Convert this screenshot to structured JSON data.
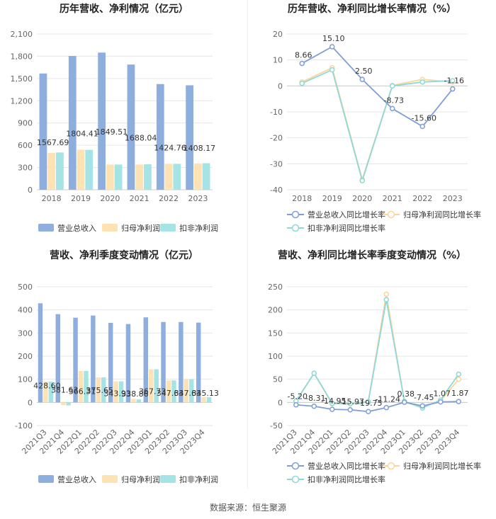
{
  "source_note": "数据来源：恒生聚源",
  "colors": {
    "revenue": "#8eaedd",
    "net_profit": "#fde2b4",
    "deducted_profit": "#a6e3e4",
    "revenue_line": "#7f9fd4",
    "net_profit_line": "#f9d79b",
    "deducted_line": "#8fd8d8",
    "grid": "#e6e6e6",
    "axis_text": "#666666",
    "title": "#222222"
  },
  "chart_data": [
    {
      "id": "annual_amount",
      "type": "bar",
      "title": "历年营收、净利情况（亿元）",
      "categories": [
        "2018",
        "2019",
        "2020",
        "2021",
        "2022",
        "2023"
      ],
      "ylim": [
        0,
        2100
      ],
      "yticks": [
        0,
        300,
        600,
        900,
        1200,
        1500,
        1800,
        2100
      ],
      "ytick_labels": [
        "0",
        "300",
        "600",
        "900",
        "1,200",
        "1,500",
        "1,800",
        "2,100"
      ],
      "series": [
        {
          "name": "营业总收入",
          "values": [
            1567.69,
            1804.41,
            1849.51,
            1688.04,
            1424.76,
            1408.17
          ],
          "labels": [
            "1567.69",
            "1804.41",
            "1849.51",
            "1688.04",
            "1424.76",
            "1408.17"
          ]
        },
        {
          "name": "归母净利润",
          "values": [
            497,
            540,
            340,
            340,
            350,
            355
          ]
        },
        {
          "name": "扣非净利润",
          "values": [
            503,
            538,
            340,
            343,
            350,
            358
          ]
        }
      ]
    },
    {
      "id": "annual_growth",
      "type": "line",
      "title": "历年营收、净利同比增长率情况（%）",
      "categories": [
        "2018",
        "2019",
        "2020",
        "2021",
        "2022",
        "2023"
      ],
      "ylim": [
        -40,
        20
      ],
      "yticks": [
        -40,
        -30,
        -20,
        -10,
        0,
        10,
        20
      ],
      "ytick_labels": [
        "-40",
        "-30",
        "-20",
        "-10",
        "0",
        "10",
        "20"
      ],
      "series": [
        {
          "name": "营业总收入同比增长率",
          "values": [
            8.66,
            15.1,
            2.5,
            -8.73,
            -15.6,
            -1.16
          ],
          "labels": [
            "8.66",
            "15.10",
            "2.50",
            "-8.73",
            "-15.60",
            "-1.16"
          ]
        },
        {
          "name": "归母净利润同比增长率",
          "values": [
            1.5,
            7.0,
            -36.0,
            0.2,
            2.5,
            1.5
          ]
        },
        {
          "name": "扣非净利润同比增长率",
          "values": [
            1.0,
            6.2,
            -36.5,
            0.0,
            1.5,
            2.0
          ]
        }
      ]
    },
    {
      "id": "quarterly_amount",
      "type": "bar",
      "title": "营收、净利季度变动情况（亿元）",
      "categories": [
        "2021Q3",
        "2021Q4",
        "2022Q1",
        "2022Q2",
        "2022Q3",
        "2022Q4",
        "2023Q1",
        "2023Q2",
        "2023Q3",
        "2023Q4"
      ],
      "ylim": [
        -100,
        500
      ],
      "yticks": [
        -100,
        0,
        100,
        200,
        300,
        400,
        500
      ],
      "ytick_labels": [
        "-100",
        "0",
        "100",
        "200",
        "300",
        "400",
        "500"
      ],
      "series": [
        {
          "name": "营业总收入",
          "values": [
            428.6,
            381.63,
            366.31,
            375.65,
            343.93,
            338.86,
            367.73,
            347.63,
            347.63,
            345.13
          ],
          "labels": [
            "428.60",
            "381.63",
            "366.31",
            "375.65",
            "343.93",
            "338.86",
            "367.73",
            "347.63",
            "347.63",
            "345.13"
          ]
        },
        {
          "name": "归母净利润",
          "values": [
            90,
            -12,
            136,
            108,
            91,
            15,
            143,
            95,
            100,
            23
          ]
        },
        {
          "name": "扣非净利润",
          "values": [
            90,
            -13,
            136,
            108,
            91,
            13,
            143,
            95,
            100,
            23
          ]
        }
      ]
    },
    {
      "id": "quarterly_growth",
      "type": "line",
      "title": "营收、净利同比增长率季度变动情况（%）",
      "categories": [
        "2021Q3",
        "2021Q4",
        "2022Q1",
        "2022Q2",
        "2022Q3",
        "2022Q4",
        "2023Q1",
        "2023Q2",
        "2023Q3",
        "2023Q4"
      ],
      "ylim": [
        -50,
        250
      ],
      "yticks": [
        -50,
        0,
        50,
        100,
        150,
        200,
        250
      ],
      "ytick_labels": [
        "-50",
        "0",
        "50",
        "100",
        "150",
        "200",
        "250"
      ],
      "series": [
        {
          "name": "营业总收入同比增长率",
          "values": [
            -5.2,
            -8.31,
            -14.95,
            -15.97,
            -19.75,
            -11.24,
            0.38,
            -7.45,
            1.07,
            1.87
          ],
          "labels": [
            "-5.20",
            "-8.31",
            "-14.95",
            "-15.97",
            "-19.75",
            "-11.24",
            "0.38",
            "-7.45",
            "1.07",
            "1.87"
          ]
        },
        {
          "name": "归母净利润同比增长率",
          "values": [
            2,
            63,
            -3,
            -3,
            2,
            234,
            1,
            -10,
            3,
            50
          ]
        },
        {
          "name": "扣非净利润同比增长率",
          "values": [
            3,
            63,
            -2,
            -3,
            1,
            222,
            2,
            -12,
            5,
            61
          ]
        }
      ]
    }
  ]
}
